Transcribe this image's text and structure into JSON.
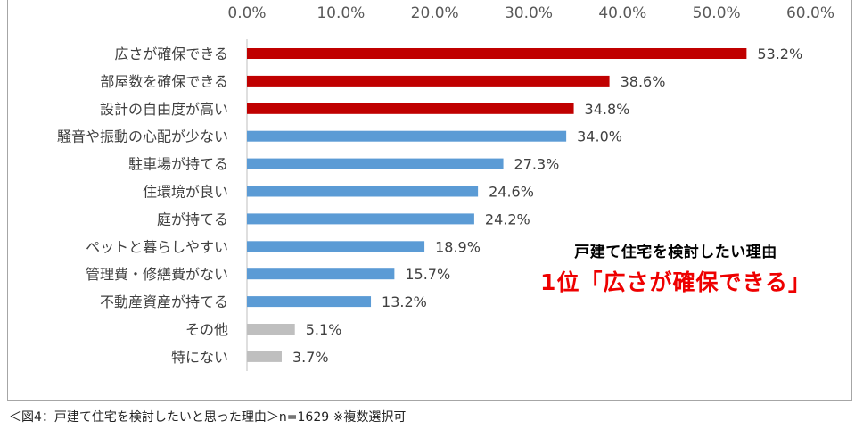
{
  "chart_data": {
    "type": "bar",
    "orientation": "horizontal",
    "xlim": [
      0,
      60
    ],
    "tick_labels": [
      "0.0%",
      "10.0%",
      "20.0%",
      "30.0%",
      "40.0%",
      "50.0%",
      "60.0%"
    ],
    "categories": [
      "広さが確保できる",
      "部屋数を確保できる",
      "設計の自由度が高い",
      "騒音や振動の心配が少ない",
      "駐車場が持てる",
      "住環境が良い",
      "庭が持てる",
      "ペットと暮らしやすい",
      "管理費・修繕費がない",
      "不動産資産が持てる",
      "その他",
      "特にない"
    ],
    "values": [
      53.2,
      38.6,
      34.8,
      34.0,
      27.3,
      24.6,
      24.2,
      18.9,
      15.7,
      13.2,
      5.1,
      3.7
    ],
    "value_labels": [
      "53.2%",
      "38.6%",
      "34.8%",
      "34.0%",
      "27.3%",
      "24.6%",
      "24.2%",
      "18.9%",
      "15.7%",
      "13.2%",
      "5.1%",
      "3.7%"
    ],
    "bar_colors": [
      "#c00000",
      "#c00000",
      "#c00000",
      "#5b9bd5",
      "#5b9bd5",
      "#5b9bd5",
      "#5b9bd5",
      "#5b9bd5",
      "#5b9bd5",
      "#5b9bd5",
      "#bfbfbf",
      "#bfbfbf"
    ],
    "grid": false,
    "axis_position": "top"
  },
  "callout": {
    "subtitle": "戸建て住宅を検討したい理由",
    "headline": "1位「広さが確保できる」"
  },
  "caption": "＜図4：戸建て住宅を検討したいと思った理由＞n=1629 ※複数選択可"
}
